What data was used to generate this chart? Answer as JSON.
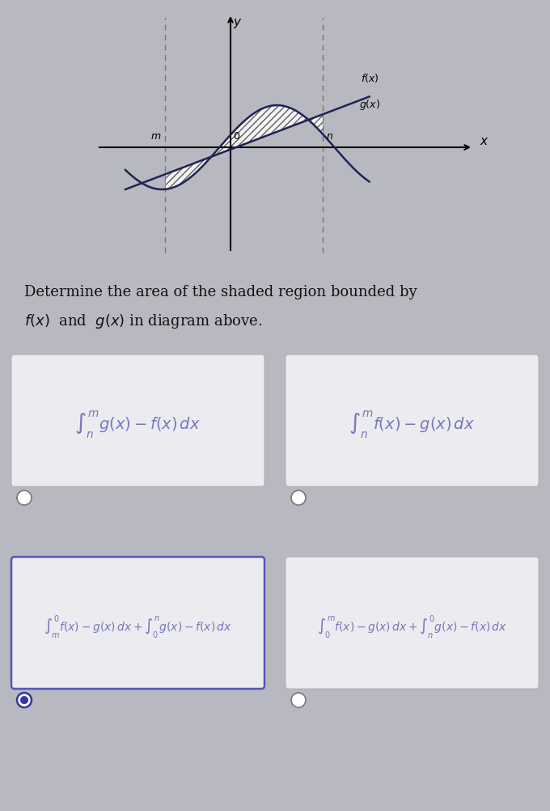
{
  "bg_color": "#b8b8c0",
  "card_bg": "#ebebf0",
  "card_border_normal": "#aaaaaa",
  "card_border_selected": "#5555bb",
  "selected": [
    false,
    false,
    true,
    false
  ],
  "radio_selected_color": "#3333aa",
  "formula_color": "#7777bb",
  "text_color": "#111111",
  "graph_bg": "#c8c8d0",
  "option_formulas_top": [
    "$\\int_{n}^{m} g(x)-f(x)\\,dx$",
    "$\\int_{n}^{m} f(x)-g(x)\\,dx$"
  ],
  "option_formulas_bot": [
    "$\\int_{m}^{0} f(x)-g(x)\\,dx+\\int_{0}^{n} g(x)-f(x)\\,dx$",
    "$\\int_{0}^{m} f(x)-g(x)\\,dx+\\int_{n}^{0} g(x)-f(x)\\,dx$"
  ]
}
